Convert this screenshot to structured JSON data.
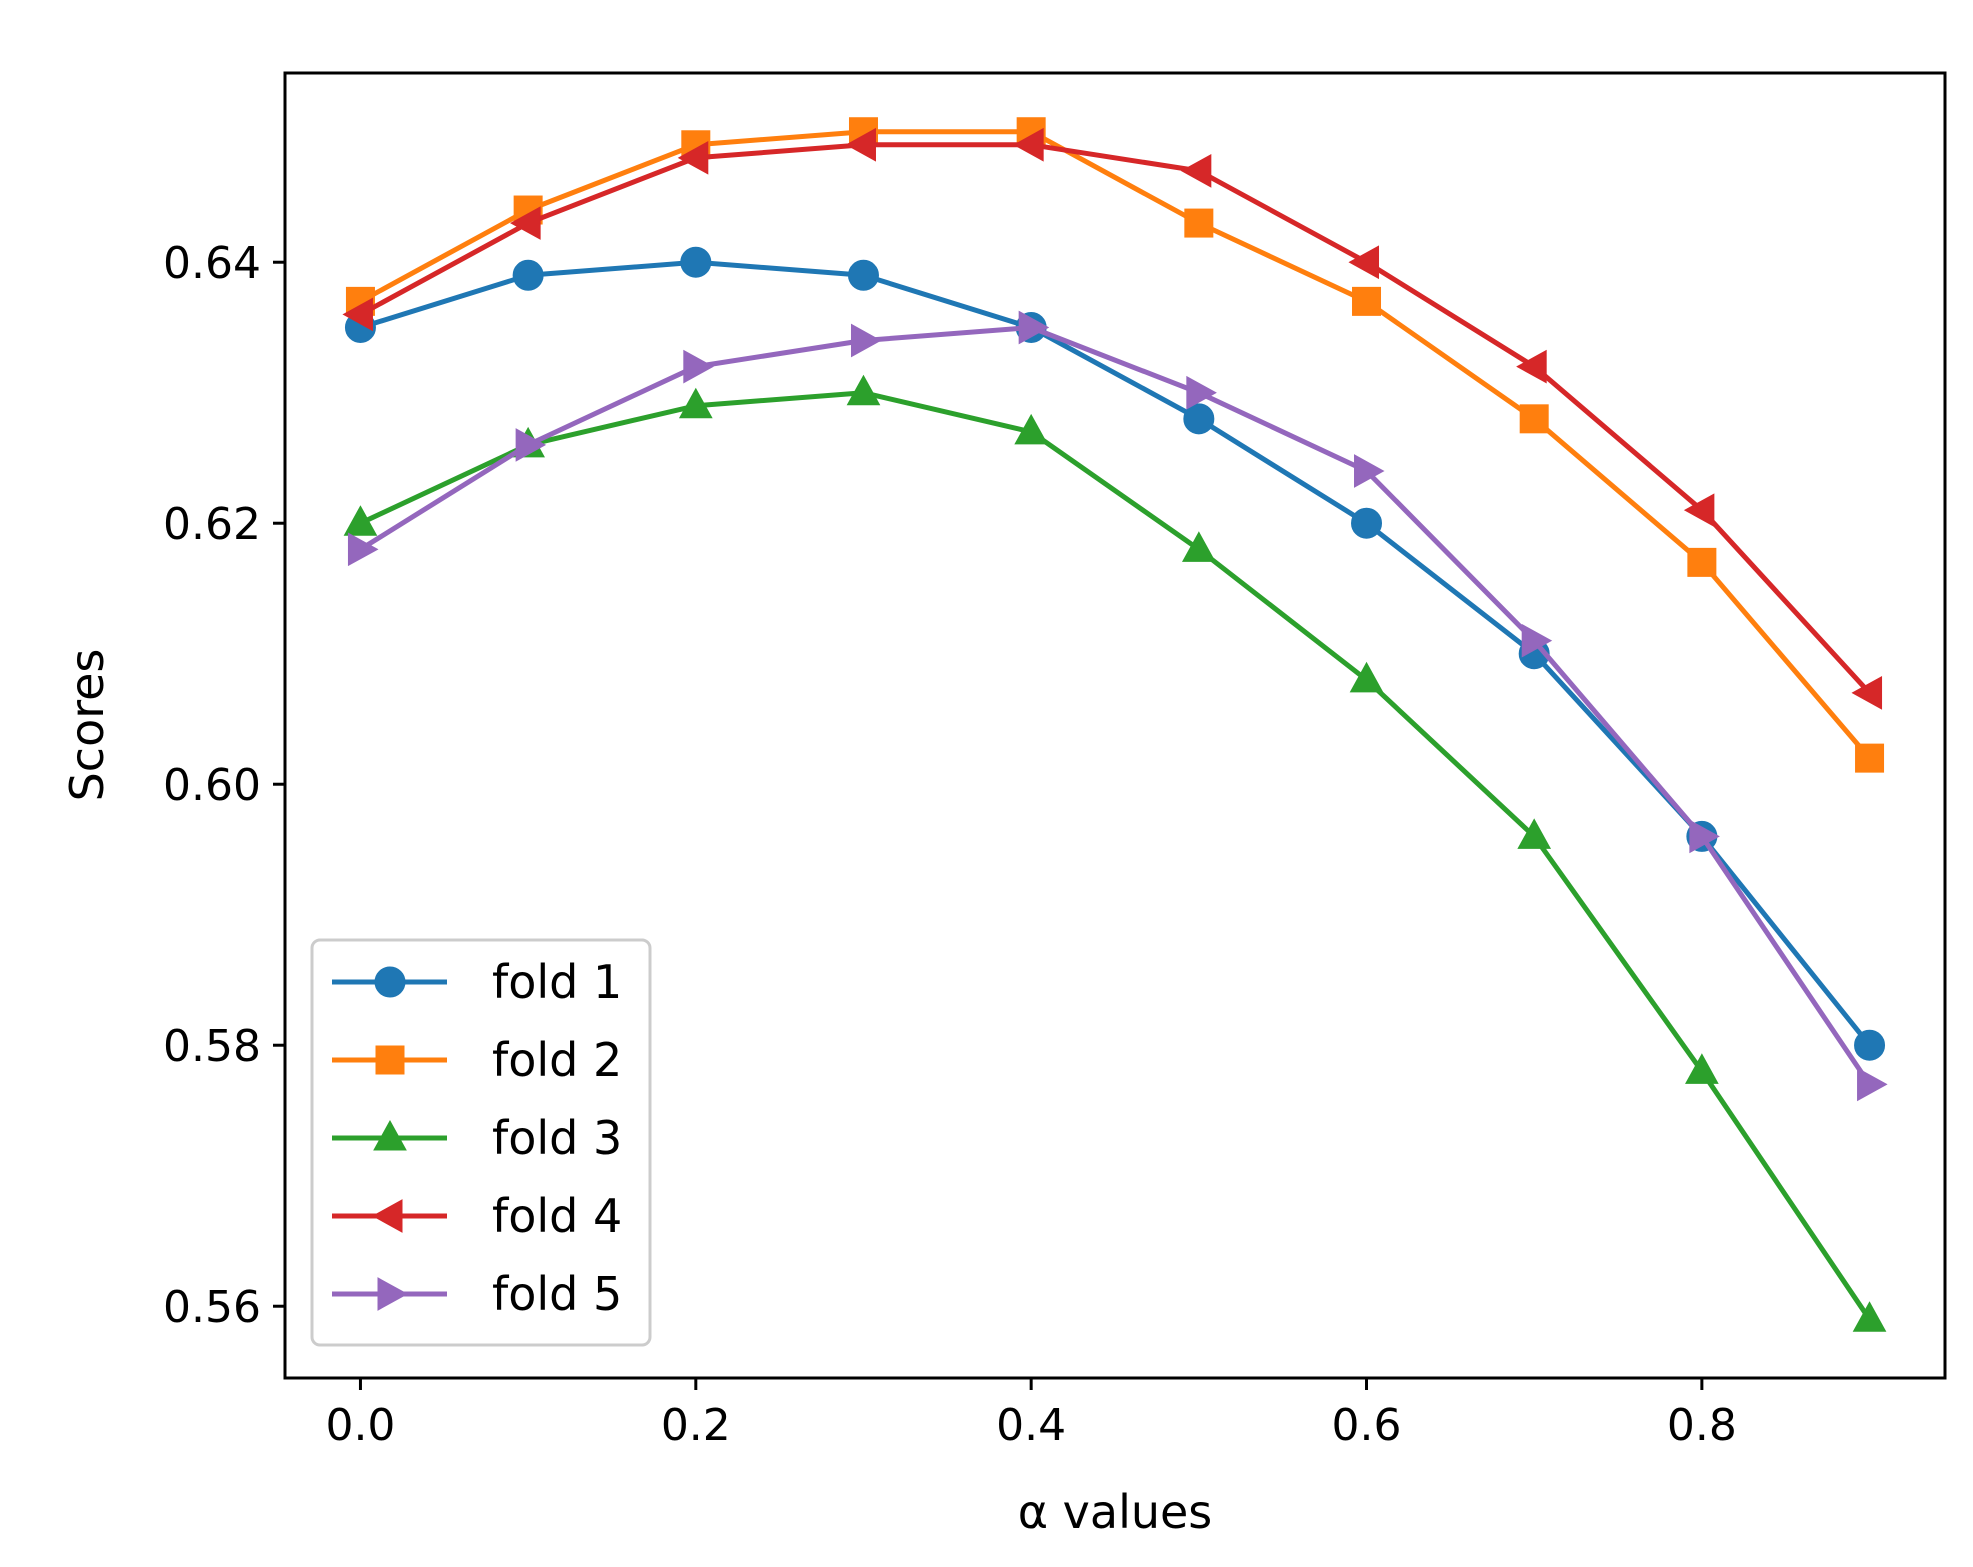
{
  "chart_data": {
    "type": "line",
    "title": "",
    "xlabel": "α values",
    "ylabel": "Scores",
    "x": [
      0.0,
      0.1,
      0.2,
      0.3,
      0.4,
      0.5,
      0.6,
      0.7,
      0.8,
      0.9
    ],
    "xlim": [
      -0.045,
      0.945
    ],
    "ylim": [
      0.5545,
      0.6545
    ],
    "xticks": [
      0.0,
      0.2,
      0.4,
      0.6,
      0.8
    ],
    "xtick_labels": [
      "0.0",
      "0.2",
      "0.4",
      "0.6",
      "0.8"
    ],
    "yticks": [
      0.56,
      0.58,
      0.6,
      0.62,
      0.64
    ],
    "ytick_labels": [
      "0.56",
      "0.58",
      "0.60",
      "0.62",
      "0.64"
    ],
    "grid": false,
    "legend_position": "lower-left",
    "series": [
      {
        "name": "fold 1",
        "marker": "circle",
        "color": "#1f77b4",
        "values": [
          0.635,
          0.639,
          0.64,
          0.639,
          0.635,
          0.628,
          0.62,
          0.61,
          0.596,
          0.58
        ]
      },
      {
        "name": "fold 2",
        "marker": "square",
        "color": "#ff7f0e",
        "values": [
          0.637,
          0.644,
          0.649,
          0.65,
          0.65,
          0.643,
          0.637,
          0.628,
          0.617,
          0.602
        ]
      },
      {
        "name": "fold 3",
        "marker": "triangle-up",
        "color": "#2ca02c",
        "values": [
          0.62,
          0.626,
          0.629,
          0.63,
          0.627,
          0.618,
          0.608,
          0.596,
          0.578,
          0.559
        ]
      },
      {
        "name": "fold 4",
        "marker": "triangle-left",
        "color": "#d62728",
        "values": [
          0.636,
          0.643,
          0.648,
          0.649,
          0.649,
          0.647,
          0.64,
          0.632,
          0.621,
          0.607
        ]
      },
      {
        "name": "fold 5",
        "marker": "triangle-right",
        "color": "#9467bd",
        "values": [
          0.618,
          0.626,
          0.632,
          0.634,
          0.635,
          0.63,
          0.624,
          0.611,
          0.596,
          0.577
        ]
      }
    ]
  }
}
